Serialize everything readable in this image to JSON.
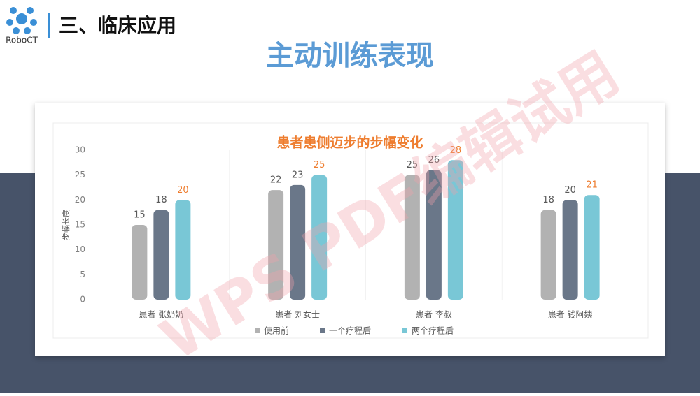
{
  "header": {
    "logo": "RoboCT",
    "section": "三、临床应用",
    "title": "主动训练表现"
  },
  "watermark": "WPS PDF编辑试用",
  "chart_data": {
    "type": "bar",
    "title": "患者患侧迈步的步幅变化",
    "y_label": "步幅长度",
    "categories": [
      "患者 张奶奶",
      "患者 刘女士",
      "患者 李叔",
      "患者  钱阿姨"
    ],
    "series": [
      {
        "name": "使用前",
        "color": "#b2b2b2",
        "label_color": "#595959",
        "values": [
          15,
          22,
          25,
          18
        ]
      },
      {
        "name": "一个疗程后",
        "color": "#6a7789",
        "label_color": "#595959",
        "values": [
          18,
          23,
          26,
          20
        ]
      },
      {
        "name": "两个疗程后",
        "color": "#79c7d6",
        "label_color": "#ee7d2f",
        "values": [
          20,
          25,
          28,
          21
        ]
      }
    ],
    "ylim": [
      0,
      30
    ],
    "yticks": [
      0,
      5,
      10,
      15,
      20,
      25,
      30
    ],
    "grid": false,
    "legend": "bottom"
  }
}
